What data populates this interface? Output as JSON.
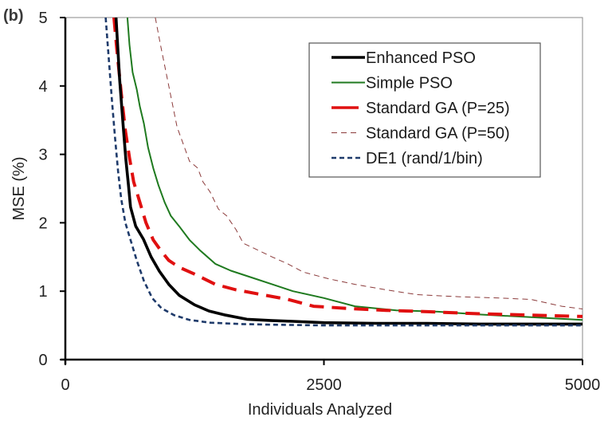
{
  "panel_label": "(b)",
  "chart_data": {
    "type": "line",
    "title": "",
    "xlabel": "Individuals Analyzed",
    "ylabel": "MSE (%)",
    "xlim": [
      0,
      5000
    ],
    "ylim": [
      0,
      5
    ],
    "xticks": [
      0,
      2500,
      5000
    ],
    "xtick_labels": [
      "0",
      "2500",
      "5000"
    ],
    "yticks": [
      0,
      1,
      2,
      3,
      4,
      5
    ],
    "ytick_labels": [
      "0",
      "1",
      "2",
      "3",
      "4",
      "5"
    ],
    "grid": false,
    "legend_position": "top-right",
    "series": [
      {
        "name": "Enhanced PSO",
        "color": "#000000",
        "style": "solid-thick",
        "x": [
          490,
          525,
          560,
          585,
          610,
          630,
          680,
          755,
          830,
          910,
          1000,
          1100,
          1250,
          1390,
          1550,
          1755,
          2000,
          2200,
          2500,
          3000,
          3500,
          4000,
          4500,
          5000
        ],
        "y": [
          5.0,
          4.1,
          3.4,
          2.93,
          2.55,
          2.23,
          1.95,
          1.76,
          1.5,
          1.29,
          1.1,
          0.94,
          0.8,
          0.71,
          0.65,
          0.59,
          0.57,
          0.56,
          0.54,
          0.53,
          0.53,
          0.52,
          0.52,
          0.52
        ]
      },
      {
        "name": "Simple PSO",
        "color": "#1f7a1f",
        "style": "solid",
        "x": [
          600,
          620,
          650,
          690,
          720,
          760,
          800,
          850,
          900,
          960,
          1020,
          1100,
          1200,
          1300,
          1450,
          1600,
          1800,
          2000,
          2200,
          2500,
          2800,
          3200,
          3600,
          4000,
          4500,
          5000
        ],
        "y": [
          5.0,
          4.6,
          4.2,
          3.95,
          3.7,
          3.45,
          3.1,
          2.8,
          2.55,
          2.3,
          2.1,
          1.95,
          1.75,
          1.6,
          1.4,
          1.3,
          1.2,
          1.1,
          1.0,
          0.9,
          0.78,
          0.72,
          0.7,
          0.66,
          0.62,
          0.58
        ]
      },
      {
        "name": "Standard GA (P=25)",
        "color": "#e01010",
        "style": "long-dash-thick",
        "x": [
          470,
          500,
          540,
          580,
          620,
          660,
          720,
          780,
          850,
          920,
          1000,
          1100,
          1250,
          1450,
          1650,
          1900,
          2150,
          2400,
          2700,
          3100,
          3500,
          4000,
          4500,
          5000
        ],
        "y": [
          5.0,
          4.5,
          3.9,
          3.35,
          2.95,
          2.6,
          2.3,
          2.0,
          1.75,
          1.6,
          1.45,
          1.35,
          1.25,
          1.1,
          1.02,
          0.95,
          0.88,
          0.78,
          0.75,
          0.72,
          0.7,
          0.67,
          0.65,
          0.63
        ]
      },
      {
        "name": "Standard GA (P=50)",
        "color": "#8b3a3a",
        "style": "thin-dash",
        "x": [
          870,
          920,
          980,
          1040,
          1080,
          1140,
          1200,
          1280,
          1330,
          1400,
          1480,
          1560,
          1650,
          1720,
          1820,
          2000,
          2150,
          2300,
          2550,
          2800,
          3100,
          3400,
          3800,
          4200,
          4500,
          4800,
          5000
        ],
        "y": [
          5.0,
          4.6,
          4.15,
          3.7,
          3.4,
          3.15,
          2.9,
          2.8,
          2.6,
          2.45,
          2.2,
          2.1,
          1.9,
          1.7,
          1.63,
          1.5,
          1.4,
          1.28,
          1.18,
          1.1,
          1.02,
          0.95,
          0.92,
          0.9,
          0.88,
          0.78,
          0.74
        ]
      },
      {
        "name": "DE1 (rand/1/bin)",
        "color": "#1f3b6b",
        "style": "short-dash",
        "x": [
          390,
          420,
          450,
          480,
          510,
          540,
          580,
          630,
          690,
          760,
          840,
          930,
          1050,
          1200,
          1400,
          1700,
          2000,
          2500,
          3000,
          3500,
          4000,
          4500,
          5000
        ],
        "y": [
          5.0,
          4.4,
          3.8,
          3.25,
          2.75,
          2.35,
          2.0,
          1.75,
          1.45,
          1.15,
          0.9,
          0.75,
          0.65,
          0.58,
          0.54,
          0.52,
          0.51,
          0.5,
          0.5,
          0.5,
          0.5,
          0.5,
          0.5
        ]
      }
    ]
  }
}
